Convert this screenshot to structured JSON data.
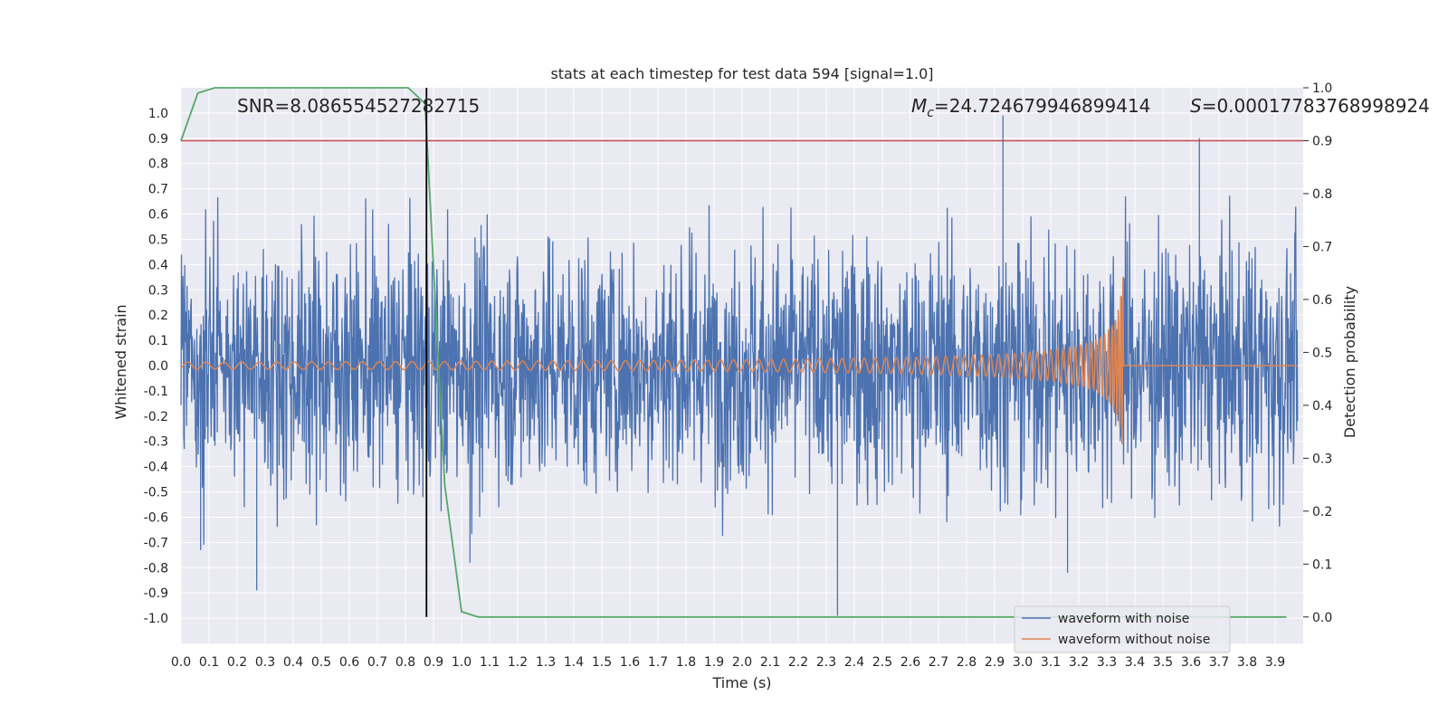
{
  "chart_data": {
    "type": "line",
    "title": "stats at each timestep for test data 594 [signal=1.0]",
    "xlabel": "Time (s)",
    "ylabel": "Whitened strain",
    "y2label": "Detection probability",
    "xlim": [
      0.0,
      4.0
    ],
    "ylim": [
      -1.1,
      1.1
    ],
    "y2lim": [
      -0.05,
      1.0
    ],
    "xticks": [
      "0.0",
      "0.1",
      "0.2",
      "0.3",
      "0.4",
      "0.5",
      "0.6",
      "0.7",
      "0.8",
      "0.9",
      "1.0",
      "1.1",
      "1.2",
      "1.3",
      "1.4",
      "1.5",
      "1.6",
      "1.7",
      "1.8",
      "1.9",
      "2.0",
      "2.1",
      "2.2",
      "2.3",
      "2.4",
      "2.5",
      "2.6",
      "2.7",
      "2.8",
      "2.9",
      "3.0",
      "3.1",
      "3.2",
      "3.3",
      "3.4",
      "3.5",
      "3.6",
      "3.7",
      "3.8",
      "3.9"
    ],
    "yticks": [
      "1.0",
      "0.9",
      "0.8",
      "0.7",
      "0.6",
      "0.5",
      "0.4",
      "0.3",
      "0.2",
      "0.1",
      "0.0",
      "-0.1",
      "-0.2",
      "-0.3",
      "-0.4",
      "-0.5",
      "-0.6",
      "-0.7",
      "-0.8",
      "-0.9",
      "-1.0"
    ],
    "y2ticks": [
      "1.0",
      "0.9",
      "0.8",
      "0.7",
      "0.6",
      "0.5",
      "0.4",
      "0.3",
      "0.2",
      "0.1",
      "0.0"
    ],
    "annotations": {
      "snr": "SNR=8.086554527282715",
      "mc_symbol": "M",
      "mc_sub": "c",
      "mc_value": "=24.724679946899414",
      "s_symbol": "S",
      "s_value": "=0.00017783768998924"
    },
    "threshold": 0.9,
    "marker_time": 0.875,
    "series": [
      {
        "name": "waveform with noise",
        "color": "#4c72b0",
        "amplitude": 0.45,
        "outliers": [
          [
            2.93,
            0.99
          ],
          [
            3.63,
            0.9
          ],
          [
            2.34,
            -0.99
          ],
          [
            0.27,
            -0.89
          ],
          [
            2.93,
            0.89
          ],
          [
            1.03,
            -0.78
          ],
          [
            3.16,
            -0.82
          ],
          [
            0.07,
            -0.73
          ]
        ]
      },
      {
        "name": "waveform without noise",
        "color": "#dd8452",
        "chirp_start": 0.0,
        "merger_time": 3.36,
        "peak_amplitude": 0.4
      },
      {
        "name": "detection probability",
        "color": "#55a868",
        "x": [
          0.0,
          0.06,
          0.12,
          0.81,
          0.87,
          0.94,
          1.0,
          1.06,
          3.94
        ],
        "y": [
          0.9,
          0.99,
          1.0,
          1.0,
          0.97,
          0.25,
          0.01,
          0.0,
          0.0
        ]
      }
    ],
    "threshold_color": "#c44e52",
    "marker_color": "#000000",
    "legend": {
      "placement": "lower-right",
      "entries": [
        "waveform with noise",
        "waveform without noise"
      ]
    }
  }
}
